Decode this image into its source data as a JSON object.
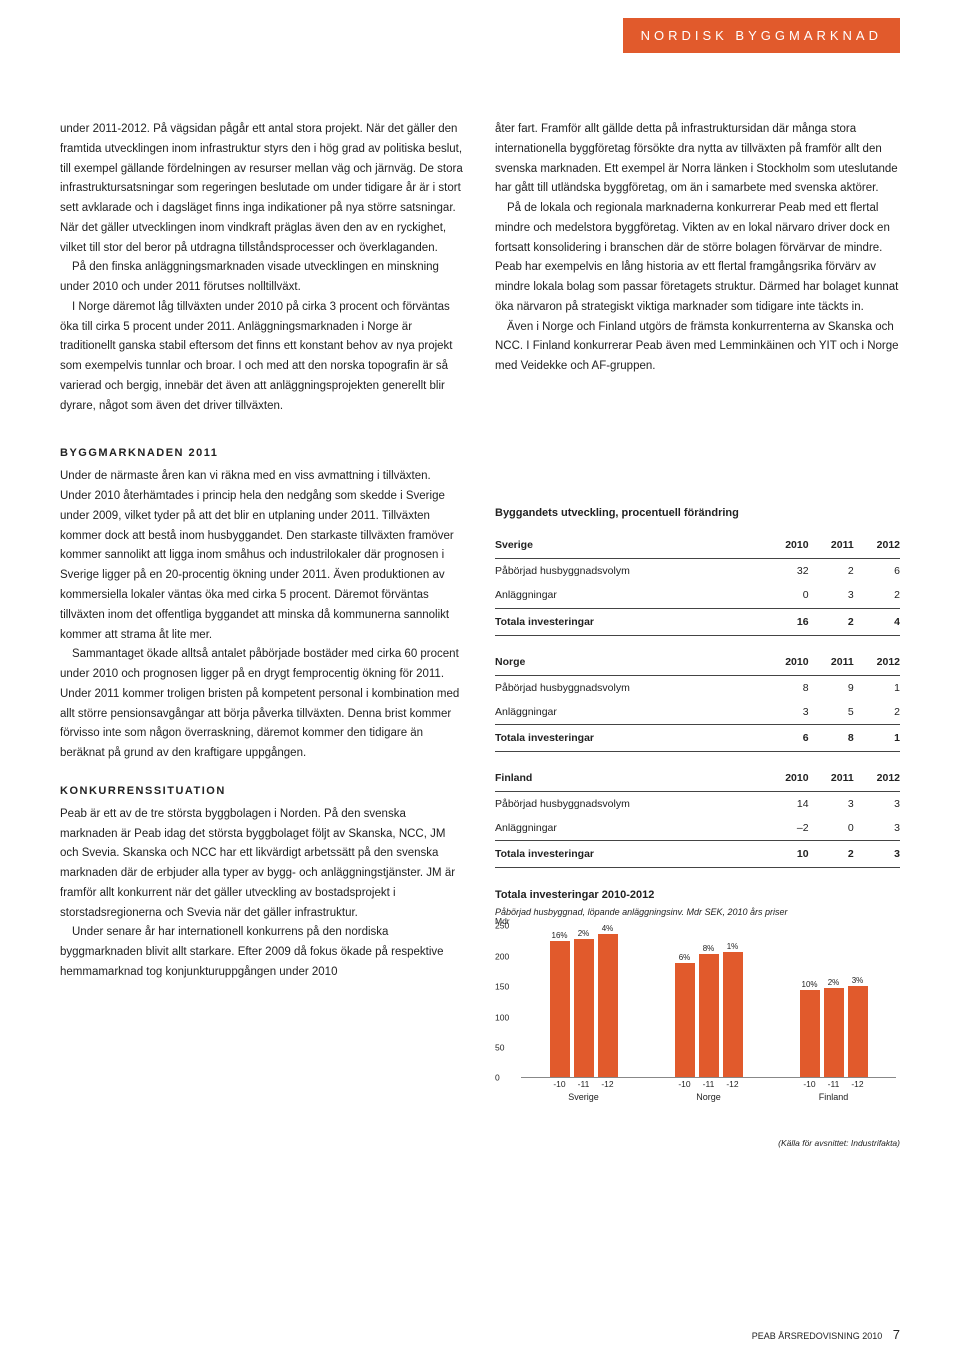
{
  "header_tag": "NORDISK BYGGMARKNAD",
  "top_left": [
    "under 2011-2012. På vägsidan pågår ett antal stora projekt. När det gäller den framtida utvecklingen inom infrastruktur styrs den i hög grad av politiska beslut, till exempel gällande fördelningen av resurser mellan väg och järnväg. De stora infrastruktursatsningar som regeringen beslutade om under tidigare år är i stort sett avklarade och i dagsläget finns inga indikationer på nya större satsningar. När det gäller utvecklingen inom vindkraft präglas även den av en ryckighet, vilket till stor del beror på utdragna tillståndsprocesser och överklaganden.",
    "På den finska anläggningsmarknaden visade utvecklingen en minskning under 2010 och under 2011 förutses nolltillväxt.",
    "I Norge däremot låg tillväxten under 2010 på cirka 3 procent och förväntas öka till cirka 5 procent under 2011. Anläggningsmarknaden i Norge är traditionellt ganska stabil eftersom det finns ett konstant behov av nya projekt som exempelvis tunnlar och broar. I och med att den norska topografin är så varierad och bergig, innebär det även att anläggningsprojekten generellt blir dyrare, något som även det driver tillväxten."
  ],
  "top_right": [
    "åter fart. Framför allt gällde detta på infrastruktursidan där många stora internationella byggföretag försökte dra nytta av tillväxten på framför allt den svenska marknaden. Ett exempel är Norra länken i Stockholm som uteslutande har gått till utländska byggföretag, om än i samarbete med svenska aktörer.",
    "På de lokala och regionala marknaderna konkurrerar Peab med ett flertal mindre och medelstora byggföretag. Vikten av en lokal närvaro driver dock en fortsatt konsolidering i branschen där de större bolagen förvärvar de mindre. Peab har exempelvis en lång historia av ett flertal framgångsrika förvärv av mindre lokala bolag som passar företagets struktur. Därmed har bolaget kunnat öka närvaron på strategiskt viktiga marknader som tidigare inte täckts in.",
    "Även i Norge och Finland utgörs de främsta konkurrenterna av Skanska och NCC. I Finland konkurrerar Peab även med Lemminkäinen och YIT och i Norge med Veidekke och AF-gruppen."
  ],
  "sect1_head": "BYGGMARKNADEN 2011",
  "sect1_paras": [
    "Under de närmaste åren kan vi räkna med en viss avmattning i tillväxten. Under 2010 återhämtades i princip hela den nedgång som skedde i Sverige under 2009, vilket tyder på att det blir en utplaning under 2011. Tillväxten kommer dock att bestå inom husbyggandet. Den starkaste tillväxten framöver kommer sannolikt att ligga inom småhus och industrilokaler där prognosen i Sverige ligger på en 20-procentig ökning under 2011. Även produktionen av kommersiella lokaler väntas öka med cirka 5 procent. Däremot förväntas tillväxten inom det offentliga byggandet att minska då kommunerna sannolikt kommer att strama åt lite mer.",
    "Sammantaget ökade alltså antalet påbörjade bostäder med cirka 60 procent under 2010 och prognosen ligger på en drygt femprocentig ökning för 2011. Under 2011 kommer troligen bristen på kompetent personal i kombination med allt större pensionsavgångar att börja påverka tillväxten. Denna brist kommer förvisso inte som någon överraskning, däremot kommer den tidigare än beräknat på grund av den kraftigare uppgången."
  ],
  "sect2_head": "KONKURRENSSITUATION",
  "sect2_paras": [
    "Peab är ett av de tre största byggbolagen i Norden. På den svenska marknaden är Peab idag det största byggbolaget följt av Skanska, NCC, JM och Svevia. Skanska och NCC har ett likvärdigt arbetssätt på den svenska marknaden där de erbjuder alla typer av bygg- och anläggningstjänster. JM är framför allt konkurrent när det gäller utveckling av bostadsprojekt i storstadsregionerna och Svevia när det gäller infrastruktur.",
    "Under senare år har internationell konkurrens på den nordiska byggmarknaden blivit allt starkare. Efter 2009 då fokus ökade på respektive hemmamarknad tog konjunkturuppgången under 2010"
  ],
  "table_title": "Byggandets utveckling, procentuell förändring",
  "row_labels": {
    "r1": "Påbörjad husbyggnadsvolym",
    "r2": "Anläggningar",
    "r3": "Totala investeringar"
  },
  "year_cols": [
    "2010",
    "2011",
    "2012"
  ],
  "tables": [
    {
      "region": "Sverige",
      "rows": [
        [
          "32",
          "2",
          "6"
        ],
        [
          "0",
          "3",
          "2"
        ],
        [
          "16",
          "2",
          "4"
        ]
      ]
    },
    {
      "region": "Norge",
      "rows": [
        [
          "8",
          "9",
          "1"
        ],
        [
          "3",
          "5",
          "2"
        ],
        [
          "6",
          "8",
          "1"
        ]
      ]
    },
    {
      "region": "Finland",
      "rows": [
        [
          "14",
          "3",
          "3"
        ],
        [
          "–2",
          "0",
          "3"
        ],
        [
          "10",
          "2",
          "3"
        ]
      ]
    }
  ],
  "chart": {
    "title": "Totala investeringar 2010-2012",
    "subtitle": "Påbörjad husbyggnad, löpande anläggningsinv. Mdr SEK, 2010 års priser",
    "yaxis_unit": "Mdr",
    "ylim": [
      0,
      250
    ],
    "yticks": [
      0,
      50,
      100,
      150,
      200,
      250
    ],
    "bar_color": "#e15a2c",
    "groups": [
      {
        "name": "Sverige",
        "bars": [
          {
            "x": "-10",
            "v": 225,
            "lbl": "16%"
          },
          {
            "x": "-11",
            "v": 229,
            "lbl": "2%"
          },
          {
            "x": "-12",
            "v": 238,
            "lbl": "4%"
          }
        ]
      },
      {
        "name": "Norge",
        "bars": [
          {
            "x": "-10",
            "v": 190,
            "lbl": "6%"
          },
          {
            "x": "-11",
            "v": 205,
            "lbl": "8%"
          },
          {
            "x": "-12",
            "v": 207,
            "lbl": "1%"
          }
        ]
      },
      {
        "name": "Finland",
        "bars": [
          {
            "x": "-10",
            "v": 145,
            "lbl": "10%"
          },
          {
            "x": "-11",
            "v": 148,
            "lbl": "2%"
          },
          {
            "x": "-12",
            "v": 152,
            "lbl": "3%"
          }
        ]
      }
    ],
    "source": "(Källa för avsnittet: Industrifakta)"
  },
  "footer_text": "PEAB ÅRSREDOVISNING 2010",
  "footer_page": "7"
}
